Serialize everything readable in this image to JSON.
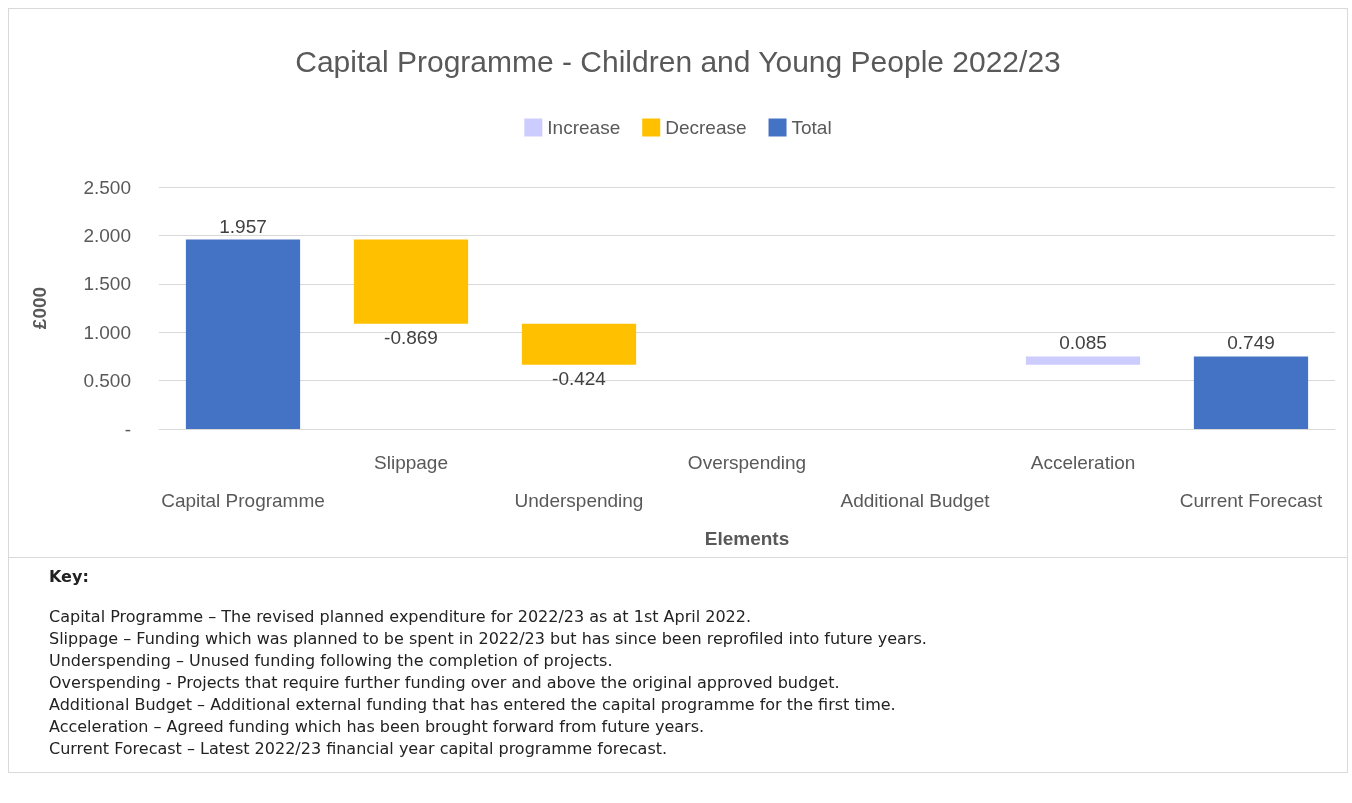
{
  "chart_data": {
    "type": "bar",
    "title": "Capital Programme - Children and Young People 2022/23",
    "xlabel": "Elements",
    "ylabel": "£000",
    "categories": [
      "Capital Programme",
      "Slippage",
      "Underspending",
      "Overspending",
      "Additional Budget",
      "Acceleration",
      "Current Forecast"
    ],
    "series": [
      {
        "name": "Increase",
        "color": "#ccccff",
        "values": [
          null,
          null,
          null,
          null,
          null,
          0.085,
          null
        ],
        "base": [
          null,
          null,
          null,
          null,
          null,
          0.664,
          null
        ]
      },
      {
        "name": "Decrease",
        "color": "#ffc000",
        "values": [
          null,
          -0.869,
          -0.424,
          null,
          null,
          null,
          null
        ],
        "base": [
          null,
          1.957,
          1.088,
          null,
          null,
          null,
          null
        ]
      },
      {
        "name": "Total",
        "color": "#4472c4",
        "values": [
          1.957,
          null,
          null,
          null,
          null,
          null,
          0.749
        ],
        "base": [
          0,
          null,
          null,
          null,
          null,
          null,
          0
        ]
      }
    ],
    "ylim": [
      0,
      2.5
    ],
    "yticks": [
      {
        "value": 0,
        "label": "-"
      },
      {
        "value": 0.5,
        "label": "0.500"
      },
      {
        "value": 1,
        "label": "1.000"
      },
      {
        "value": 1.5,
        "label": "1.500"
      },
      {
        "value": 2,
        "label": "2.000"
      },
      {
        "value": 2.5,
        "label": "2.500"
      }
    ],
    "grid": "y",
    "legend": "top",
    "data_labels": true,
    "annotations": [
      "Key:",
      "Capital Programme – The revised planned expenditure for 2022/23 as at 1st April 2022.",
      "Slippage – Funding which was planned to be spent in 2022/23 but has since been reprofiled into future years.",
      "Underspending – Unused funding following the completion of projects.",
      "Overspending - Projects that require further funding over and above the original approved budget.",
      "Additional Budget – Additional external funding that has entered the capital programme for the first time.",
      "Acceleration – Agreed funding which has been brought forward from future years.",
      "Current Forecast – Latest 2022/23 financial year capital programme forecast."
    ]
  }
}
